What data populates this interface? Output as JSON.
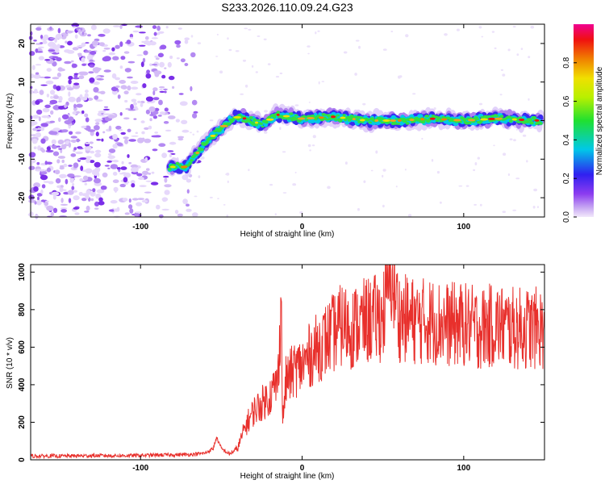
{
  "figure": {
    "title": "S233.2026.110.09.24.G23"
  },
  "chart_data": [
    {
      "type": "heatmap",
      "name": "spectrogram",
      "xlabel": "Height of straight line (km)",
      "ylabel": "Frequency (Hz)",
      "xlim": [
        -168,
        150
      ],
      "ylim": [
        -25,
        25
      ],
      "xticks": [
        -100,
        0,
        100
      ],
      "yticks": [
        -20,
        -10,
        0,
        10,
        20
      ],
      "colorbar": {
        "label": "Normalized spectral amplitude",
        "range": [
          0,
          1
        ],
        "ticks": [
          0.0,
          0.2,
          0.4,
          0.6,
          0.8
        ],
        "tick_labels": [
          "0.0",
          "0.2",
          "0.4",
          "0.6",
          "0.8"
        ],
        "colormap": "rainbow: light violet -> violet -> blue -> cyan -> green -> yellow -> orange -> red -> magenta"
      },
      "ridge": [
        {
          "x": -82,
          "y": -12
        },
        {
          "x": -72,
          "y": -12
        },
        {
          "x": -66,
          "y": -9
        },
        {
          "x": -58,
          "y": -5
        },
        {
          "x": -50,
          "y": -2
        },
        {
          "x": -42,
          "y": 1
        },
        {
          "x": -35,
          "y": 0.5
        },
        {
          "x": -25,
          "y": -1
        },
        {
          "x": -15,
          "y": 1.5
        },
        {
          "x": 0,
          "y": 0.5
        },
        {
          "x": 20,
          "y": 1
        },
        {
          "x": 40,
          "y": 0
        },
        {
          "x": 60,
          "y": 0
        },
        {
          "x": 80,
          "y": 0.5
        },
        {
          "x": 100,
          "y": 0
        },
        {
          "x": 120,
          "y": 0.5
        },
        {
          "x": 148,
          "y": 0
        }
      ],
      "noise_region_x": [
        -168,
        -68
      ]
    },
    {
      "type": "line",
      "name": "snr",
      "xlabel": "Height of straight line (km)",
      "ylabel": "SNR (10 * v/v)",
      "xlim": [
        -168,
        150
      ],
      "ylim": [
        0,
        1040
      ],
      "xticks": [
        -100,
        0,
        100
      ],
      "yticks": [
        0,
        200,
        400,
        600,
        800,
        1000
      ],
      "color": "#e8302c",
      "series": [
        {
          "name": "SNR",
          "x": [
            -168,
            -150,
            -130,
            -110,
            -90,
            -70,
            -60,
            -55,
            -53,
            -50,
            -45,
            -40,
            -35,
            -30,
            -25,
            -20,
            -15,
            -13,
            -12,
            -10,
            -5,
            0,
            5,
            10,
            15,
            20,
            25,
            30,
            40,
            50,
            55,
            60,
            70,
            80,
            90,
            100,
            110,
            120,
            130,
            140,
            150
          ],
          "y": [
            20,
            20,
            22,
            22,
            25,
            28,
            35,
            60,
            120,
            60,
            30,
            60,
            180,
            260,
            300,
            340,
            420,
            870,
            200,
            420,
            480,
            500,
            560,
            600,
            640,
            680,
            720,
            700,
            740,
            760,
            1030,
            760,
            740,
            740,
            720,
            720,
            700,
            720,
            700,
            700,
            700
          ]
        }
      ]
    }
  ]
}
